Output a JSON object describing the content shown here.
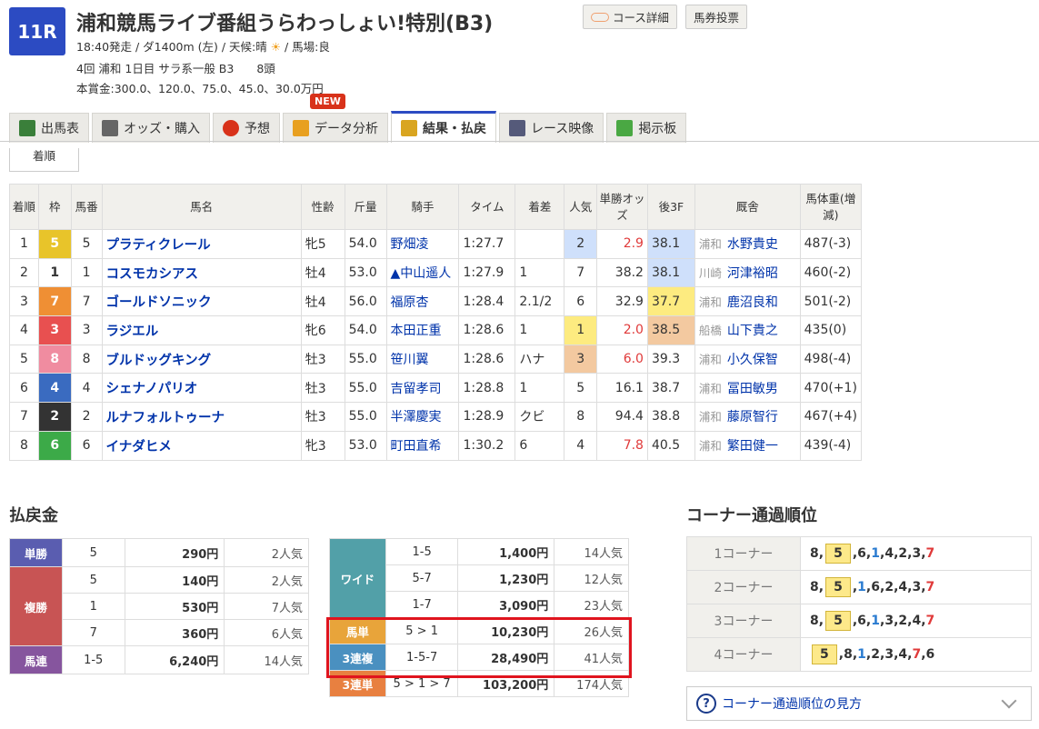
{
  "race": {
    "number": "11R",
    "title": "浦和競馬ライブ番組うらわっしょい!特別(B3)",
    "line1a": "18:40発走 / ダ1400m (左) / 天候:晴",
    "line1b": "/ 馬場:良",
    "weather_icon": "sun-icon",
    "line2": "4回 浦和 1日目 サラ系一般 B3　　8頭",
    "line3": "本賞金:300.0、120.0、75.0、45.0、30.0万円"
  },
  "buttons": {
    "course": "コース詳細",
    "bet": "馬券投票"
  },
  "tabs": [
    {
      "label": "出馬表",
      "icon": "entry-table-icon",
      "color": "#3a7f3a"
    },
    {
      "label": "オッズ・購入",
      "icon": "odds-icon",
      "color": "#666"
    },
    {
      "label": "予想",
      "icon": "target-icon",
      "color": "#d8321a"
    },
    {
      "label": "データ分析",
      "icon": "bar-chart-icon",
      "color": "#e8a020"
    },
    {
      "label": "結果・払戻",
      "icon": "coins-icon",
      "color": "#d9a520"
    },
    {
      "label": "レース映像",
      "icon": "video-icon",
      "color": "#555a7a"
    },
    {
      "label": "掲示板",
      "icon": "chat-icon",
      "color": "#4aa843"
    }
  ],
  "new_badge": "NEW",
  "subtab": "着順",
  "results": {
    "headers": [
      "着順",
      "枠",
      "馬番",
      "馬名",
      "性齢",
      "斤量",
      "騎手",
      "タイム",
      "着差",
      "人気",
      "単勝オッズ",
      "後3F",
      "厩舎",
      "馬体重(増減)"
    ],
    "frame_colors": {
      "1": "#ffffff",
      "2": "#333333",
      "3": "#e85050",
      "4": "#3a6bc0",
      "5": "#e8c42a",
      "6": "#3caa48",
      "7": "#ef8f34",
      "8": "#f08ca0"
    },
    "rows": [
      {
        "rank": "1",
        "frame": "5",
        "num": "5",
        "name": "プラティクレール",
        "sexage": "牝5",
        "weight": "54.0",
        "jockey": "野畑凌",
        "time": "1:27.7",
        "margin": "",
        "pop": "2",
        "odds": "2.9",
        "last3f": "38.1",
        "loc": "浦和",
        "trainer": "水野貴史",
        "body": "487(-3)",
        "pop_bg": "#cfe0fb",
        "f3_bg": "#cfe0fb",
        "odds_red": true
      },
      {
        "rank": "2",
        "frame": "1",
        "num": "1",
        "name": "コスモカシアス",
        "sexage": "牡4",
        "weight": "53.0",
        "jockey": "▲中山遥人",
        "time": "1:27.9",
        "margin": "1",
        "pop": "7",
        "odds": "38.2",
        "last3f": "38.1",
        "loc": "川崎",
        "trainer": "河津裕昭",
        "body": "460(-2)",
        "pop_bg": "",
        "f3_bg": "#cfe0fb",
        "odds_red": false
      },
      {
        "rank": "3",
        "frame": "7",
        "num": "7",
        "name": "ゴールドソニック",
        "sexage": "牡4",
        "weight": "56.0",
        "jockey": "福原杏",
        "time": "1:28.4",
        "margin": "2.1/2",
        "pop": "6",
        "odds": "32.9",
        "last3f": "37.7",
        "loc": "浦和",
        "trainer": "鹿沼良和",
        "body": "501(-2)",
        "pop_bg": "",
        "f3_bg": "#fdeb80",
        "odds_red": false
      },
      {
        "rank": "4",
        "frame": "3",
        "num": "3",
        "name": "ラジエル",
        "sexage": "牝6",
        "weight": "54.0",
        "jockey": "本田正重",
        "time": "1:28.6",
        "margin": "1",
        "pop": "1",
        "odds": "2.0",
        "last3f": "38.5",
        "loc": "船橋",
        "trainer": "山下貴之",
        "body": "435(0)",
        "pop_bg": "#fdeb80",
        "f3_bg": "#f3c9a0",
        "odds_red": true
      },
      {
        "rank": "5",
        "frame": "8",
        "num": "8",
        "name": "ブルドッグキング",
        "sexage": "牡3",
        "weight": "55.0",
        "jockey": "笹川翼",
        "time": "1:28.6",
        "margin": "ハナ",
        "pop": "3",
        "odds": "6.0",
        "last3f": "39.3",
        "loc": "浦和",
        "trainer": "小久保智",
        "body": "498(-4)",
        "pop_bg": "#f3c9a0",
        "f3_bg": "",
        "odds_red": true
      },
      {
        "rank": "6",
        "frame": "4",
        "num": "4",
        "name": "シェナノパリオ",
        "sexage": "牡3",
        "weight": "55.0",
        "jockey": "吉留孝司",
        "time": "1:28.8",
        "margin": "1",
        "pop": "5",
        "odds": "16.1",
        "last3f": "38.7",
        "loc": "浦和",
        "trainer": "冨田敏男",
        "body": "470(+1)",
        "pop_bg": "",
        "f3_bg": "",
        "odds_red": false
      },
      {
        "rank": "7",
        "frame": "2",
        "num": "2",
        "name": "ルナフォルトゥーナ",
        "sexage": "牡3",
        "weight": "55.0",
        "jockey": "半澤慶実",
        "time": "1:28.9",
        "margin": "クビ",
        "pop": "8",
        "odds": "94.4",
        "last3f": "38.8",
        "loc": "浦和",
        "trainer": "藤原智行",
        "body": "467(+4)",
        "pop_bg": "",
        "f3_bg": "",
        "odds_red": false
      },
      {
        "rank": "8",
        "frame": "6",
        "num": "6",
        "name": "イナダヒメ",
        "sexage": "牝3",
        "weight": "53.0",
        "jockey": "町田直希",
        "time": "1:30.2",
        "margin": "6",
        "pop": "4",
        "odds": "7.8",
        "last3f": "40.5",
        "loc": "浦和",
        "trainer": "繁田健一",
        "body": "439(-4)",
        "pop_bg": "",
        "f3_bg": "",
        "odds_red": true
      }
    ]
  },
  "payout": {
    "title": "払戻金",
    "left": [
      {
        "type": "単勝",
        "color": "#5a5db0",
        "rows": [
          [
            "5",
            "290円",
            "2人気"
          ]
        ]
      },
      {
        "type": "複勝",
        "color": "#c85454",
        "rows": [
          [
            "5",
            "140円",
            "2人気"
          ],
          [
            "1",
            "530円",
            "7人気"
          ],
          [
            "7",
            "360円",
            "6人気"
          ]
        ]
      },
      {
        "type": "馬連",
        "color": "#86559e",
        "rows": [
          [
            "1-5",
            "6,240円",
            "14人気"
          ]
        ]
      }
    ],
    "right": [
      {
        "type": "ワイド",
        "color": "#52a0a8",
        "rows": [
          [
            "1-5",
            "1,400円",
            "14人気"
          ],
          [
            "5-7",
            "1,230円",
            "12人気"
          ],
          [
            "1-7",
            "3,090円",
            "23人気"
          ]
        ]
      },
      {
        "type": "馬単",
        "color": "#e8a43a",
        "rows": [
          [
            "5 > 1",
            "10,230円",
            "26人気"
          ]
        ]
      },
      {
        "type": "3連複",
        "color": "#4a90c0",
        "rows": [
          [
            "1-5-7",
            "28,490円",
            "41人気"
          ]
        ]
      },
      {
        "type": "3連単",
        "color": "#e88040",
        "rows": [
          [
            "5 > 1 > 7",
            "103,200円",
            "174人気"
          ]
        ]
      }
    ]
  },
  "corner": {
    "title": "コーナー通過順位",
    "rows": [
      {
        "label": "1コーナー",
        "order": [
          "8",
          "5",
          "6",
          "1",
          "4",
          "2",
          "3",
          "7"
        ]
      },
      {
        "label": "2コーナー",
        "order": [
          "8",
          "5",
          "1",
          "6",
          "2",
          "4",
          "3",
          "7"
        ]
      },
      {
        "label": "3コーナー",
        "order": [
          "8",
          "5",
          "6",
          "1",
          "3",
          "2",
          "4",
          "7"
        ]
      },
      {
        "label": "4コーナー",
        "order": [
          "5",
          "8",
          "1",
          "2",
          "3",
          "4",
          "7",
          "6"
        ]
      }
    ],
    "highlight": "5",
    "blue": "1",
    "red": "7",
    "help": "コーナー通過順位の見方"
  }
}
